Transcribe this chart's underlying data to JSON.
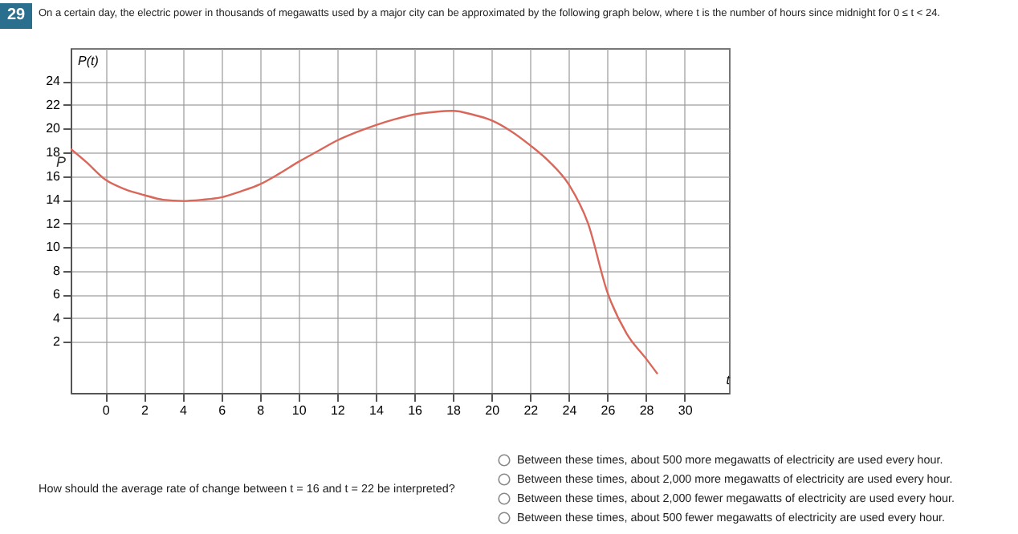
{
  "chart_data": {
    "type": "line",
    "title": "On a certain day, the electric power in thousands of megawatts used by a major city can be approximated by the following graph below, where t is the number of hours since midnight for 0 ≤ t < 24.",
    "xlabel": "t",
    "ylabel": "P(t)",
    "annotations": [
      "29",
      "How should the average rate of change between t = 16 and t = 22 be interpreted?",
      "Between these times, about 500 more megawatts of electricity are used every hour.",
      "Between these times, about 2,000 more megawatts of electricity are used every hour.",
      "Between these times, about 2,000 fewer megawatts of electricity are used every hour.",
      "Between these times, about 500 fewer megawatts of electricity are used every hour."
    ],
    "series": [
      {
        "name": "P",
        "color": "#d9675a",
        "x": [
          -1.8,
          -1,
          0,
          1,
          2,
          3,
          4,
          5,
          6,
          7,
          8,
          9,
          10,
          11,
          12,
          13,
          14,
          15,
          16,
          17,
          18,
          19,
          20,
          21,
          22,
          23,
          24,
          25,
          26,
          27,
          28,
          28.6
        ],
        "values": [
          18.3,
          17.2,
          15.7,
          14.9,
          14.4,
          14.0,
          13.9,
          14.0,
          14.2,
          14.7,
          15.3,
          16.2,
          17.2,
          18.1,
          19.0,
          19.7,
          20.3,
          20.8,
          21.2,
          21.4,
          21.5,
          21.2,
          20.7,
          19.8,
          18.6,
          17.2,
          15.3,
          12.0,
          6.2,
          2.7,
          0.6,
          -0.7
        ]
      }
    ],
    "xlim": [
      -1.8,
      32.3
    ],
    "ylim": [
      -2.3,
      26.8
    ],
    "xticks": [
      0,
      2,
      4,
      6,
      8,
      10,
      12,
      14,
      16,
      18,
      20,
      22,
      24,
      26,
      28,
      30
    ],
    "yticks": [
      2,
      4,
      6,
      8,
      10,
      12,
      14,
      16,
      18,
      20,
      22,
      24
    ],
    "grid": true,
    "marker": "none",
    "line_style": "solid"
  }
}
